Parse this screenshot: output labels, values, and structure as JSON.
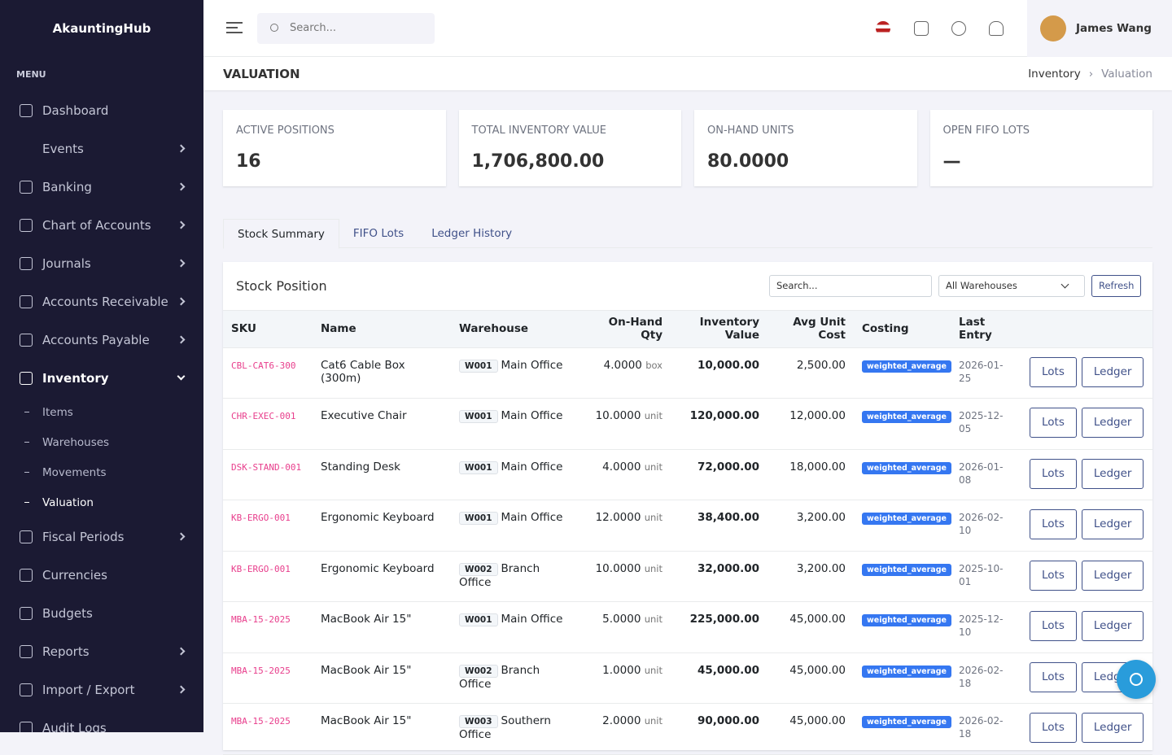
{
  "sidebar": {
    "brand": "AkauntingHub",
    "menu_label": "MENU",
    "items": [
      {
        "label": "Dashboard",
        "expandable": false
      },
      {
        "label": "Events",
        "expandable": true
      },
      {
        "label": "Banking",
        "expandable": true
      },
      {
        "label": "Chart of Accounts",
        "expandable": true
      },
      {
        "label": "Journals",
        "expandable": true
      },
      {
        "label": "Accounts Receivable",
        "expandable": true
      },
      {
        "label": "Accounts Payable",
        "expandable": true
      },
      {
        "label": "Inventory",
        "expandable": true,
        "open": true,
        "children": [
          {
            "label": "Items"
          },
          {
            "label": "Warehouses"
          },
          {
            "label": "Movements"
          },
          {
            "label": "Valuation",
            "active": true
          }
        ]
      },
      {
        "label": "Fiscal Periods",
        "expandable": true
      },
      {
        "label": "Currencies",
        "expandable": false
      },
      {
        "label": "Budgets",
        "expandable": false
      },
      {
        "label": "Reports",
        "expandable": true
      },
      {
        "label": "Import / Export",
        "expandable": true
      },
      {
        "label": "Audit Logs",
        "expandable": false
      }
    ]
  },
  "topbar": {
    "search_placeholder": "Search...",
    "user_name": "James Wang"
  },
  "page_header": {
    "title": "VALUATION",
    "breadcrumb": [
      "Inventory",
      "Valuation"
    ]
  },
  "stats": [
    {
      "label": "ACTIVE POSITIONS",
      "value": "16"
    },
    {
      "label": "TOTAL INVENTORY VALUE",
      "value": "1,706,800.00"
    },
    {
      "label": "ON-HAND UNITS",
      "value": "80.0000"
    },
    {
      "label": "OPEN FIFO LOTS",
      "value": "—"
    }
  ],
  "tabs": [
    {
      "label": "Stock Summary",
      "active": true
    },
    {
      "label": "FIFO Lots"
    },
    {
      "label": "Ledger History"
    }
  ],
  "panel": {
    "title": "Stock Position",
    "search_placeholder": "Search...",
    "warehouse_filter": "All Warehouses",
    "refresh": "Refresh"
  },
  "table": {
    "columns": [
      "SKU",
      "Name",
      "Warehouse",
      "On-Hand Qty",
      "Inventory Value",
      "Avg Unit Cost",
      "Costing",
      "Last Entry",
      ""
    ],
    "actions": [
      "Lots",
      "Ledger"
    ],
    "rows": [
      {
        "sku": "CBL-CAT6-300",
        "name": "Cat6 Cable Box (300m)",
        "wh_code": "W001",
        "wh_name": "Main Office",
        "qty": "4.0000",
        "unit": "box",
        "value": "10,000.00",
        "avg": "2,500.00",
        "costing": "weighted_average",
        "last": "2026-01-25"
      },
      {
        "sku": "CHR-EXEC-001",
        "name": "Executive Chair",
        "wh_code": "W001",
        "wh_name": "Main Office",
        "qty": "10.0000",
        "unit": "unit",
        "value": "120,000.00",
        "avg": "12,000.00",
        "costing": "weighted_average",
        "last": "2025-12-05"
      },
      {
        "sku": "DSK-STAND-001",
        "name": "Standing Desk",
        "wh_code": "W001",
        "wh_name": "Main Office",
        "qty": "4.0000",
        "unit": "unit",
        "value": "72,000.00",
        "avg": "18,000.00",
        "costing": "weighted_average",
        "last": "2026-01-08"
      },
      {
        "sku": "KB-ERGO-001",
        "name": "Ergonomic Keyboard",
        "wh_code": "W001",
        "wh_name": "Main Office",
        "qty": "12.0000",
        "unit": "unit",
        "value": "38,400.00",
        "avg": "3,200.00",
        "costing": "weighted_average",
        "last": "2026-02-10"
      },
      {
        "sku": "KB-ERGO-001",
        "name": "Ergonomic Keyboard",
        "wh_code": "W002",
        "wh_name": "Branch Office",
        "qty": "10.0000",
        "unit": "unit",
        "value": "32,000.00",
        "avg": "3,200.00",
        "costing": "weighted_average",
        "last": "2025-10-01"
      },
      {
        "sku": "MBA-15-2025",
        "name": "MacBook Air 15\"",
        "wh_code": "W001",
        "wh_name": "Main Office",
        "qty": "5.0000",
        "unit": "unit",
        "value": "225,000.00",
        "avg": "45,000.00",
        "costing": "weighted_average",
        "last": "2025-12-10"
      },
      {
        "sku": "MBA-15-2025",
        "name": "MacBook Air 15\"",
        "wh_code": "W002",
        "wh_name": "Branch Office",
        "qty": "1.0000",
        "unit": "unit",
        "value": "45,000.00",
        "avg": "45,000.00",
        "costing": "weighted_average",
        "last": "2026-02-18"
      },
      {
        "sku": "MBA-15-2025",
        "name": "MacBook Air 15\"",
        "wh_code": "W003",
        "wh_name": "Southern Office",
        "qty": "2.0000",
        "unit": "unit",
        "value": "90,000.00",
        "avg": "45,000.00",
        "costing": "weighted_average",
        "last": "2026-02-18"
      }
    ]
  }
}
